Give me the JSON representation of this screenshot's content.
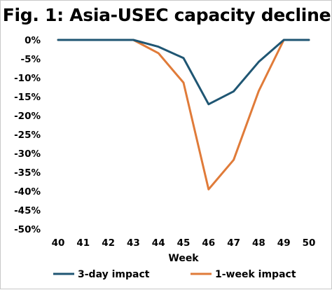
{
  "chart_data": {
    "type": "line",
    "title": "Fig. 1: Asia-USEC capacity decline",
    "xlabel": "Week",
    "ylabel": "",
    "x": [
      40,
      41,
      42,
      43,
      44,
      45,
      46,
      47,
      48,
      49,
      50
    ],
    "xlim": [
      40,
      50
    ],
    "ylim": [
      -50,
      0
    ],
    "yticks": [
      0,
      -5,
      -10,
      -15,
      -20,
      -25,
      -30,
      -35,
      -40,
      -45,
      -50
    ],
    "ytick_suffix": "%",
    "grid": false,
    "legend_position": "bottom",
    "series": [
      {
        "name": "3-day impact",
        "color": "#1f5673",
        "values": [
          0,
          0,
          0,
          0,
          -1.8,
          -4.8,
          -17,
          -13.6,
          -5.8,
          0,
          0
        ]
      },
      {
        "name": "1-week impact",
        "color": "#e07b39",
        "values": [
          0,
          0,
          0,
          0,
          -3.5,
          -11.3,
          -39.5,
          -31.7,
          -13.5,
          0,
          0
        ]
      }
    ]
  }
}
